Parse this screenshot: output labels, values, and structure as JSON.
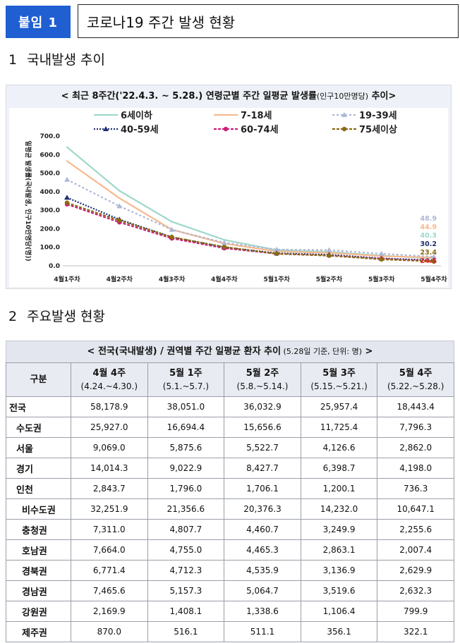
{
  "header": {
    "badge": "붙임 1",
    "title": "코로나19 주간 발생 현황"
  },
  "section1": {
    "num": "1",
    "title": "국내발생 추이"
  },
  "section2": {
    "num": "2",
    "title": "주요발생 현황"
  },
  "chart": {
    "title_main": "< 최근 8주간('22.4.3. ~ 5.28.) 연령군별 주간 일평균 발생률",
    "title_unit": "(인구10만명당)",
    "title_end": " 추이>",
    "ylabel": "일평균 발생률(국내발생, 인구10만명당(명))"
  },
  "chart_data": {
    "type": "line",
    "title": "최근 8주간('22.4.3. ~ 5.28.) 연령군별 주간 일평균 발생률(인구10만명당) 추이",
    "ylabel": "일평균 발생률(국내발생, 인구10만명당(명))",
    "ylim": [
      0,
      700
    ],
    "yticks": [
      "0.0",
      "100.0",
      "200.0",
      "300.0",
      "400.0",
      "500.0",
      "600.0",
      "700.0"
    ],
    "categories": [
      "4월1주차",
      "4월2주차",
      "4월3주차",
      "4월4주차",
      "5월1주차",
      "5월2주차",
      "5월3주차",
      "5월4주차"
    ],
    "series": [
      {
        "name": "6세이하",
        "color": "#9fd8cb",
        "dash": "",
        "marker": "none",
        "values": [
          640,
          405,
          238,
          140,
          85,
          75,
          55,
          40.3
        ],
        "end_label": "40.3"
      },
      {
        "name": "7-18세",
        "color": "#f7b98f",
        "dash": "",
        "marker": "none",
        "values": [
          565,
          365,
          195,
          120,
          78,
          70,
          52,
          44.9
        ],
        "end_label": "44.9"
      },
      {
        "name": "19-39세",
        "color": "#aeb8d6",
        "dash": "3,3",
        "marker": "triangle",
        "values": [
          465,
          322,
          195,
          125,
          88,
          85,
          65,
          48.9
        ],
        "end_label": "48.9"
      },
      {
        "name": "40-59세",
        "color": "#1e2f70",
        "dash": "2,2",
        "marker": "triangle",
        "values": [
          368,
          250,
          155,
          100,
          68,
          60,
          40,
          30.2
        ],
        "end_label": "30.2"
      },
      {
        "name": "60-74세",
        "color": "#cc1f78",
        "dash": "4,2",
        "marker": "dot",
        "values": [
          332,
          235,
          148,
          95,
          65,
          55,
          38,
          24.5
        ],
        "end_label": "24.5"
      },
      {
        "name": "75세이상",
        "color": "#8a6a12",
        "dash": "4,2",
        "marker": "dot",
        "values": [
          340,
          245,
          155,
          102,
          65,
          55,
          35,
          23.4
        ],
        "end_label": "23.4"
      }
    ]
  },
  "table": {
    "title_main": "< 전국(국내발생) / 권역별 주간 일평균 환자 추이",
    "title_note": " (5.28일 기준, 단위: 명)",
    "title_end": " >",
    "header_label": "구분",
    "columns": [
      {
        "week": "4월 4주",
        "period": "(4.24.~4.30.)"
      },
      {
        "week": "5월 1주",
        "period": "(5.1.~5.7.)"
      },
      {
        "week": "5월 2주",
        "period": "(5.8.~5.14.)"
      },
      {
        "week": "5월 3주",
        "period": "(5.15.~5.21.)"
      },
      {
        "week": "5월 4주",
        "period": "(5.22.~5.28.)"
      }
    ],
    "rows": [
      {
        "name": "전국",
        "level": 0,
        "values": [
          "58,178.9",
          "38,051.0",
          "36,032.9",
          "25,957.4",
          "18,443.4"
        ]
      },
      {
        "name": "수도권",
        "level": 1,
        "values": [
          "25,927.0",
          "16,694.4",
          "15,656.6",
          "11,725.4",
          "7,796.3"
        ]
      },
      {
        "name": "서울",
        "level": 1,
        "values": [
          "9,069.0",
          "5,875.6",
          "5,522.7",
          "4,126.6",
          "2,862.0"
        ]
      },
      {
        "name": "경기",
        "level": 1,
        "values": [
          "14,014.3",
          "9,022.9",
          "8,427.7",
          "6,398.7",
          "4,198.0"
        ]
      },
      {
        "name": "인천",
        "level": 1,
        "values": [
          "2,843.7",
          "1,796.0",
          "1,706.1",
          "1,200.1",
          "736.3"
        ]
      },
      {
        "name": "비수도권",
        "level": 2,
        "values": [
          "32,251.9",
          "21,356.6",
          "20,376.3",
          "14,232.0",
          "10,647.1"
        ]
      },
      {
        "name": "충청권",
        "level": 2,
        "values": [
          "7,311.0",
          "4,807.7",
          "4,460.7",
          "3,249.9",
          "2,255.6"
        ]
      },
      {
        "name": "호남권",
        "level": 2,
        "values": [
          "7,664.0",
          "4,755.0",
          "4,465.3",
          "2,863.1",
          "2,007.4"
        ]
      },
      {
        "name": "경북권",
        "level": 2,
        "values": [
          "6,771.4",
          "4,712.3",
          "4,535.9",
          "3,136.9",
          "2,629.9"
        ]
      },
      {
        "name": "경남권",
        "level": 2,
        "values": [
          "7,465.6",
          "5,157.3",
          "5,064.7",
          "3,519.6",
          "2,632.3"
        ]
      },
      {
        "name": "강원권",
        "level": 2,
        "values": [
          "2,169.9",
          "1,408.1",
          "1,338.6",
          "1,106.4",
          "799.9"
        ]
      },
      {
        "name": "제주권",
        "level": 2,
        "values": [
          "870.0",
          "516.1",
          "511.1",
          "356.1",
          "322.1"
        ]
      }
    ]
  }
}
